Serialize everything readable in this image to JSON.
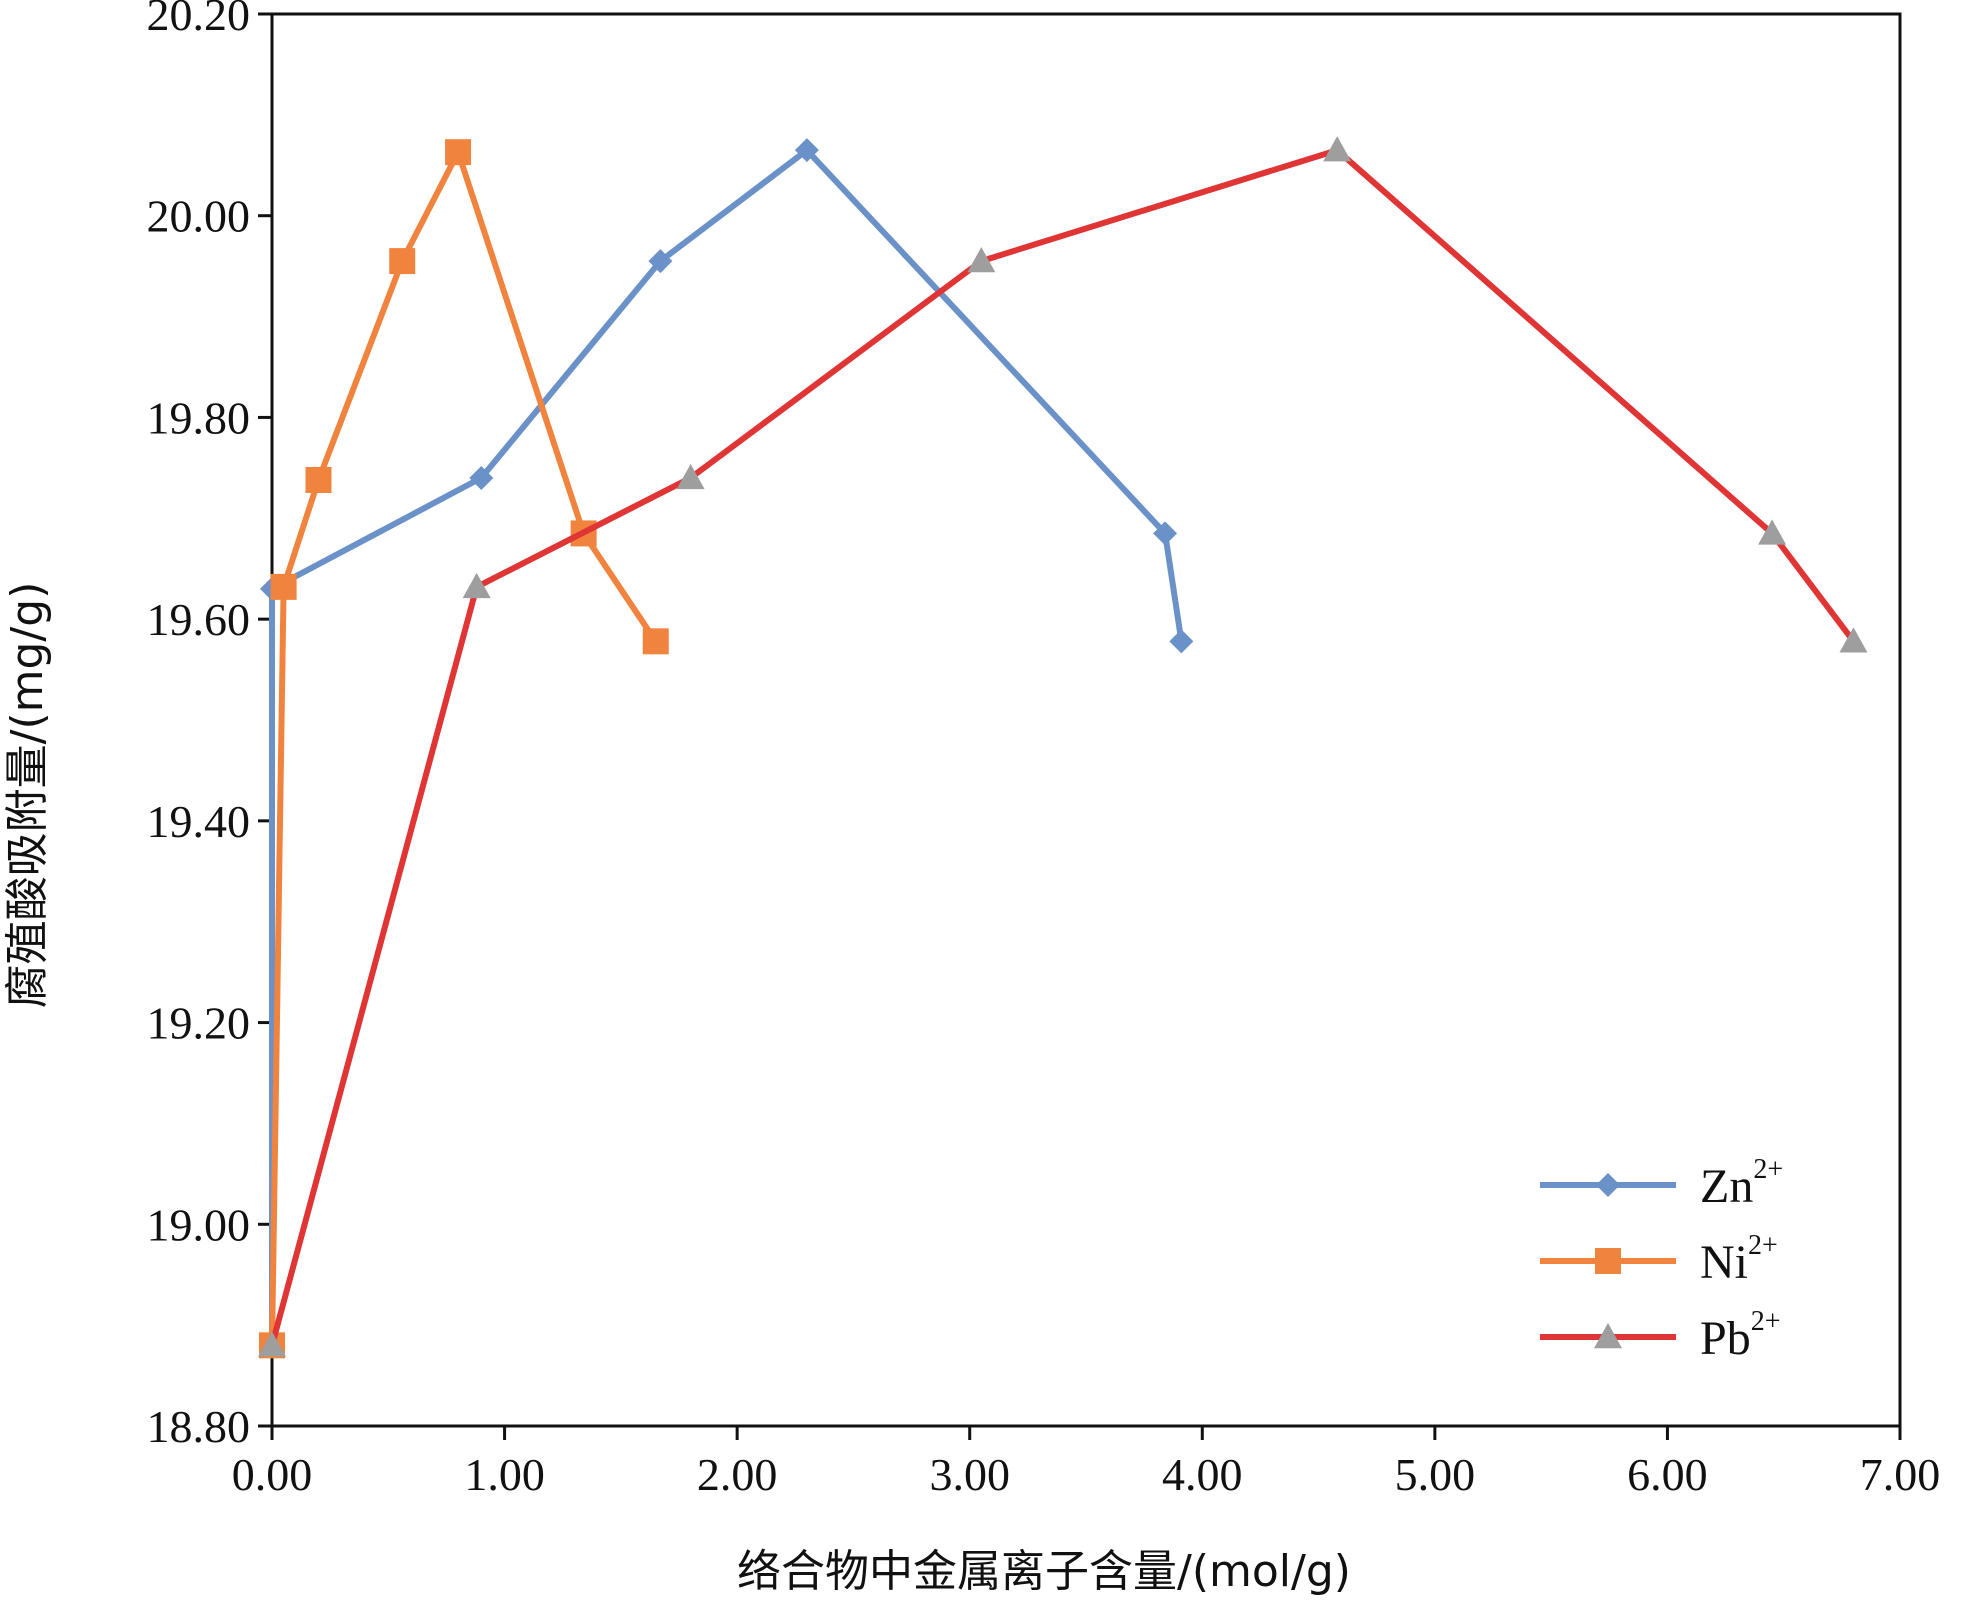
{
  "chart_data": {
    "type": "line",
    "xlabel": "络合物中金属离子含量/(mol/g)",
    "ylabel": "腐殖酸吸附量/(mg/g)",
    "xlim": [
      0,
      7
    ],
    "ylim": [
      18.8,
      20.2
    ],
    "x_ticks": [
      "0.00",
      "1.00",
      "2.00",
      "3.00",
      "4.00",
      "5.00",
      "6.00",
      "7.00"
    ],
    "y_ticks": [
      "18.80",
      "19.00",
      "19.20",
      "19.40",
      "19.60",
      "19.80",
      "20.00",
      "20.20"
    ],
    "grid": false,
    "legend_position": "bottom-right",
    "series": [
      {
        "name": "Zn",
        "name_sup": "2+",
        "color": "#6b92c8",
        "marker": "diamond",
        "points": [
          [
            0,
            18.88
          ],
          [
            0,
            19.63
          ],
          [
            0.9,
            19.74
          ],
          [
            1.67,
            19.955
          ],
          [
            2.3,
            20.065
          ],
          [
            3.84,
            19.685
          ],
          [
            3.91,
            19.578
          ]
        ]
      },
      {
        "name": "Ni",
        "name_sup": "2+",
        "color": "#f0843e",
        "marker": "square",
        "points": [
          [
            0,
            18.88
          ],
          [
            0.05,
            19.632
          ],
          [
            0.2,
            19.738
          ],
          [
            0.56,
            19.955
          ],
          [
            0.8,
            20.063
          ],
          [
            1.34,
            19.685
          ],
          [
            1.65,
            19.578
          ]
        ]
      },
      {
        "name": "Pb",
        "name_sup": "2+",
        "color": "#e03535",
        "marker": "triangle",
        "marker_color": "#9e9e9e",
        "points": [
          [
            0,
            18.88
          ],
          [
            0.88,
            19.632
          ],
          [
            1.8,
            19.74
          ],
          [
            3.05,
            19.955
          ],
          [
            4.58,
            20.065
          ],
          [
            6.45,
            19.685
          ],
          [
            6.8,
            19.578
          ]
        ]
      }
    ]
  }
}
